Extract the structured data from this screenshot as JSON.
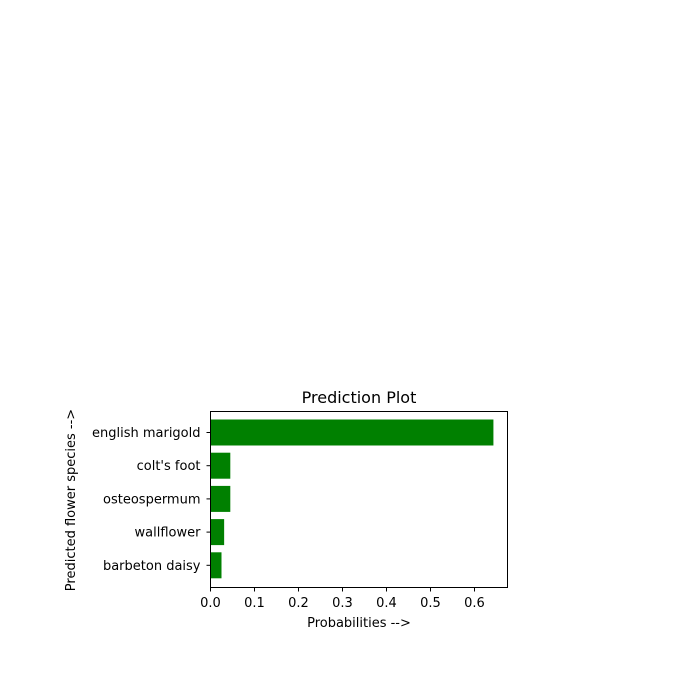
{
  "chart_data": {
    "type": "bar",
    "orientation": "horizontal",
    "title": "Prediction Plot",
    "xlabel": "Probabilities -->",
    "ylabel": "Predicted flower species -->",
    "categories": [
      "english marigold",
      "colt's foot",
      "osteospermum",
      "wallflower",
      "barbeton daisy"
    ],
    "values": [
      0.643,
      0.045,
      0.045,
      0.031,
      0.025
    ],
    "xlim": [
      0,
      0.675
    ],
    "xticks": [
      0.0,
      0.1,
      0.2,
      0.3,
      0.4,
      0.5,
      0.6
    ],
    "xtick_labels": [
      "0.0",
      "0.1",
      "0.2",
      "0.3",
      "0.4",
      "0.5",
      "0.6"
    ],
    "bar_color": "#008000",
    "grid": false
  }
}
